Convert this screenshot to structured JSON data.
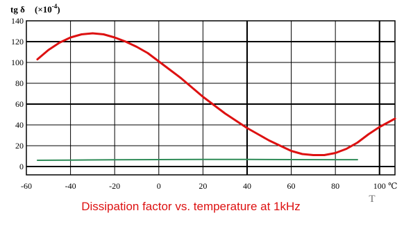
{
  "chart_data": {
    "type": "line",
    "title": "Dissipation factor vs. temperature at 1kHz",
    "ylabel_prefix": "tg δ",
    "ylabel_unit_open": "(",
    "ylabel_unit_symbol": "×10",
    "ylabel_unit_exp": "-4",
    "ylabel_unit_close": ")",
    "xlabel": "T",
    "x_unit": "℃",
    "xlim": [
      -60,
      107
    ],
    "ylim": [
      -8,
      140
    ],
    "x_ticks": [
      -60,
      -40,
      -20,
      0,
      20,
      40,
      60,
      80,
      100
    ],
    "x_tick_labels": [
      "-60",
      "-40",
      "-20",
      "0",
      "20",
      "40",
      "60",
      "80",
      "100"
    ],
    "y_ticks": [
      0,
      20,
      40,
      60,
      80,
      100,
      120,
      140
    ],
    "y_tick_labels": [
      "0",
      "20",
      "40",
      "60",
      "80",
      "100",
      "120",
      "140"
    ],
    "grid": true,
    "series": [
      {
        "color": "#dd1111",
        "x": [
          -55,
          -50,
          -45,
          -40,
          -35,
          -30,
          -25,
          -20,
          -15,
          -10,
          -5,
          0,
          5,
          10,
          15,
          20,
          25,
          30,
          35,
          40,
          45,
          50,
          55,
          60,
          65,
          70,
          75,
          80,
          85,
          90,
          95,
          100,
          107
        ],
        "y": [
          103,
          112,
          119,
          124,
          127,
          128,
          127,
          124,
          120,
          115,
          109,
          101,
          93,
          85,
          76,
          67,
          59,
          51,
          44,
          37,
          31,
          25,
          20,
          15,
          12,
          11,
          11,
          13,
          17,
          23,
          31,
          38,
          46
        ]
      },
      {
        "color": "#2e8b57",
        "x": [
          -55,
          -40,
          -20,
          0,
          20,
          40,
          60,
          80,
          90
        ],
        "y": [
          6,
          6.2,
          6.5,
          6.7,
          6.8,
          6.8,
          6.7,
          6.6,
          6.6
        ]
      }
    ]
  }
}
